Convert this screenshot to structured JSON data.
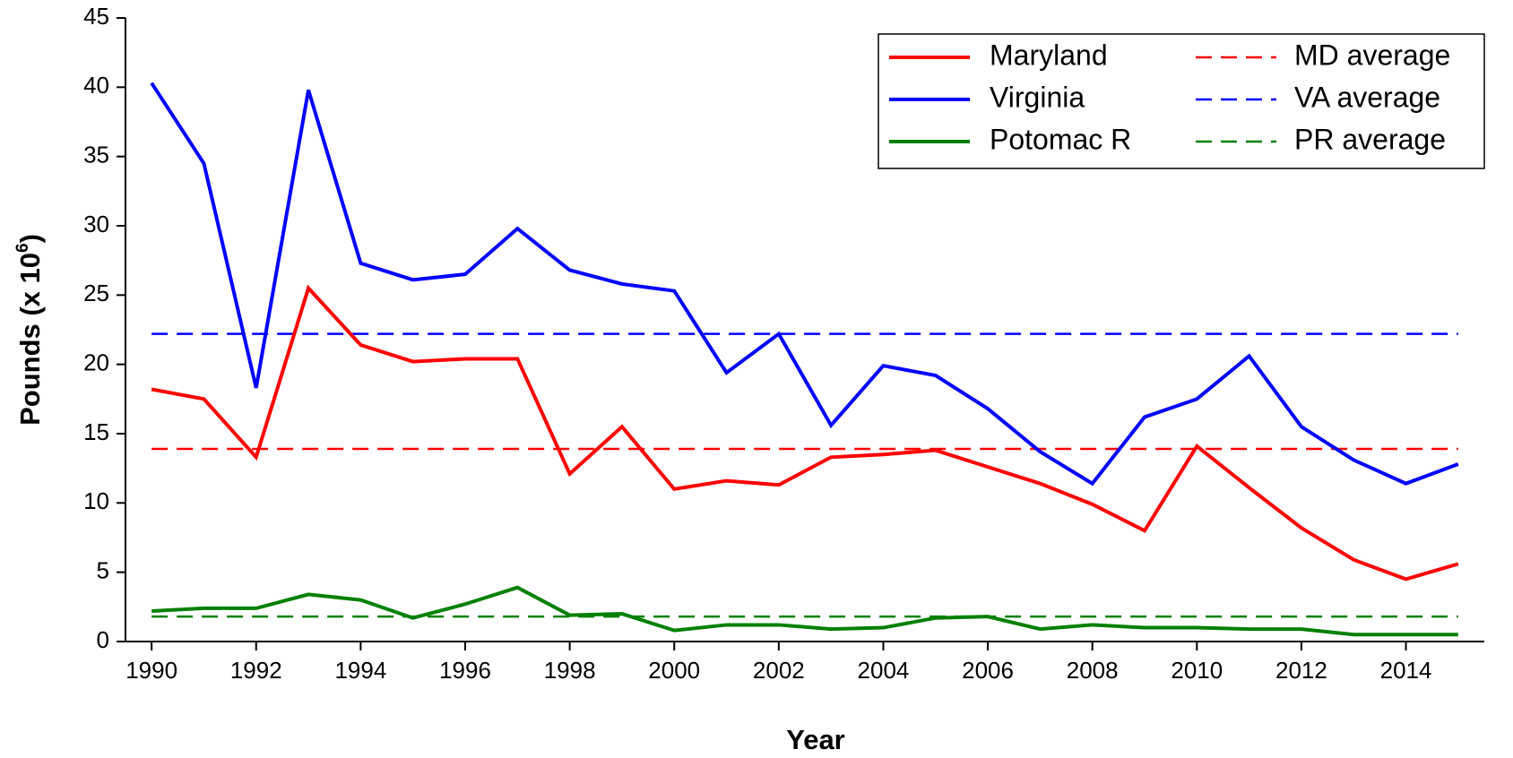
{
  "chart_data": {
    "type": "line",
    "x_label": "Year",
    "y_label": {
      "text": "Pounds (x 10",
      "superscript": "6",
      "suffix": ")"
    },
    "x": [
      1990,
      1991,
      1992,
      1993,
      1994,
      1995,
      1996,
      1997,
      1998,
      1999,
      2000,
      2001,
      2002,
      2003,
      2004,
      2005,
      2006,
      2007,
      2008,
      2009,
      2010,
      2011,
      2012,
      2013,
      2014,
      2015
    ],
    "series": [
      {
        "name": "Maryland",
        "color": "#ff0000",
        "values": [
          18.2,
          17.5,
          13.3,
          25.5,
          21.4,
          20.2,
          20.4,
          20.4,
          12.1,
          15.5,
          11.0,
          11.6,
          11.3,
          13.3,
          13.5,
          13.8,
          12.6,
          11.4,
          9.9,
          8.0,
          14.1,
          11.1,
          8.2,
          5.9,
          4.5,
          5.6
        ]
      },
      {
        "name": "Virginia",
        "color": "#0000ff",
        "values": [
          40.3,
          34.5,
          18.3,
          39.8,
          27.3,
          26.1,
          26.5,
          29.8,
          26.8,
          25.8,
          25.3,
          19.4,
          22.2,
          15.6,
          19.9,
          19.2,
          16.8,
          13.7,
          11.4,
          16.2,
          17.5,
          20.6,
          15.5,
          13.1,
          11.4,
          12.8
        ]
      },
      {
        "name": "Potomac R",
        "color": "#008000",
        "values": [
          2.2,
          2.4,
          2.4,
          3.4,
          3.0,
          1.7,
          2.7,
          3.9,
          1.9,
          2.0,
          0.8,
          1.2,
          1.2,
          0.9,
          1.0,
          1.7,
          1.8,
          0.9,
          1.2,
          1.0,
          1.0,
          0.9,
          0.9,
          0.5,
          0.5,
          0.5
        ]
      }
    ],
    "averages": [
      {
        "name": "MD average",
        "color": "#ff0000",
        "value": 13.9
      },
      {
        "name": "VA average",
        "color": "#0000ff",
        "value": 22.2
      },
      {
        "name": "PR average",
        "color": "#008000",
        "value": 1.8
      }
    ],
    "xlim": [
      1989.5,
      2015.5
    ],
    "xticks": [
      1990,
      1992,
      1994,
      1996,
      1998,
      2000,
      2002,
      2004,
      2006,
      2008,
      2010,
      2012,
      2014
    ],
    "ylim": [
      0,
      45
    ],
    "yticks": [
      0,
      5,
      10,
      15,
      20,
      25,
      30,
      35,
      40,
      45
    ],
    "grid": false,
    "legend": "upper right"
  }
}
